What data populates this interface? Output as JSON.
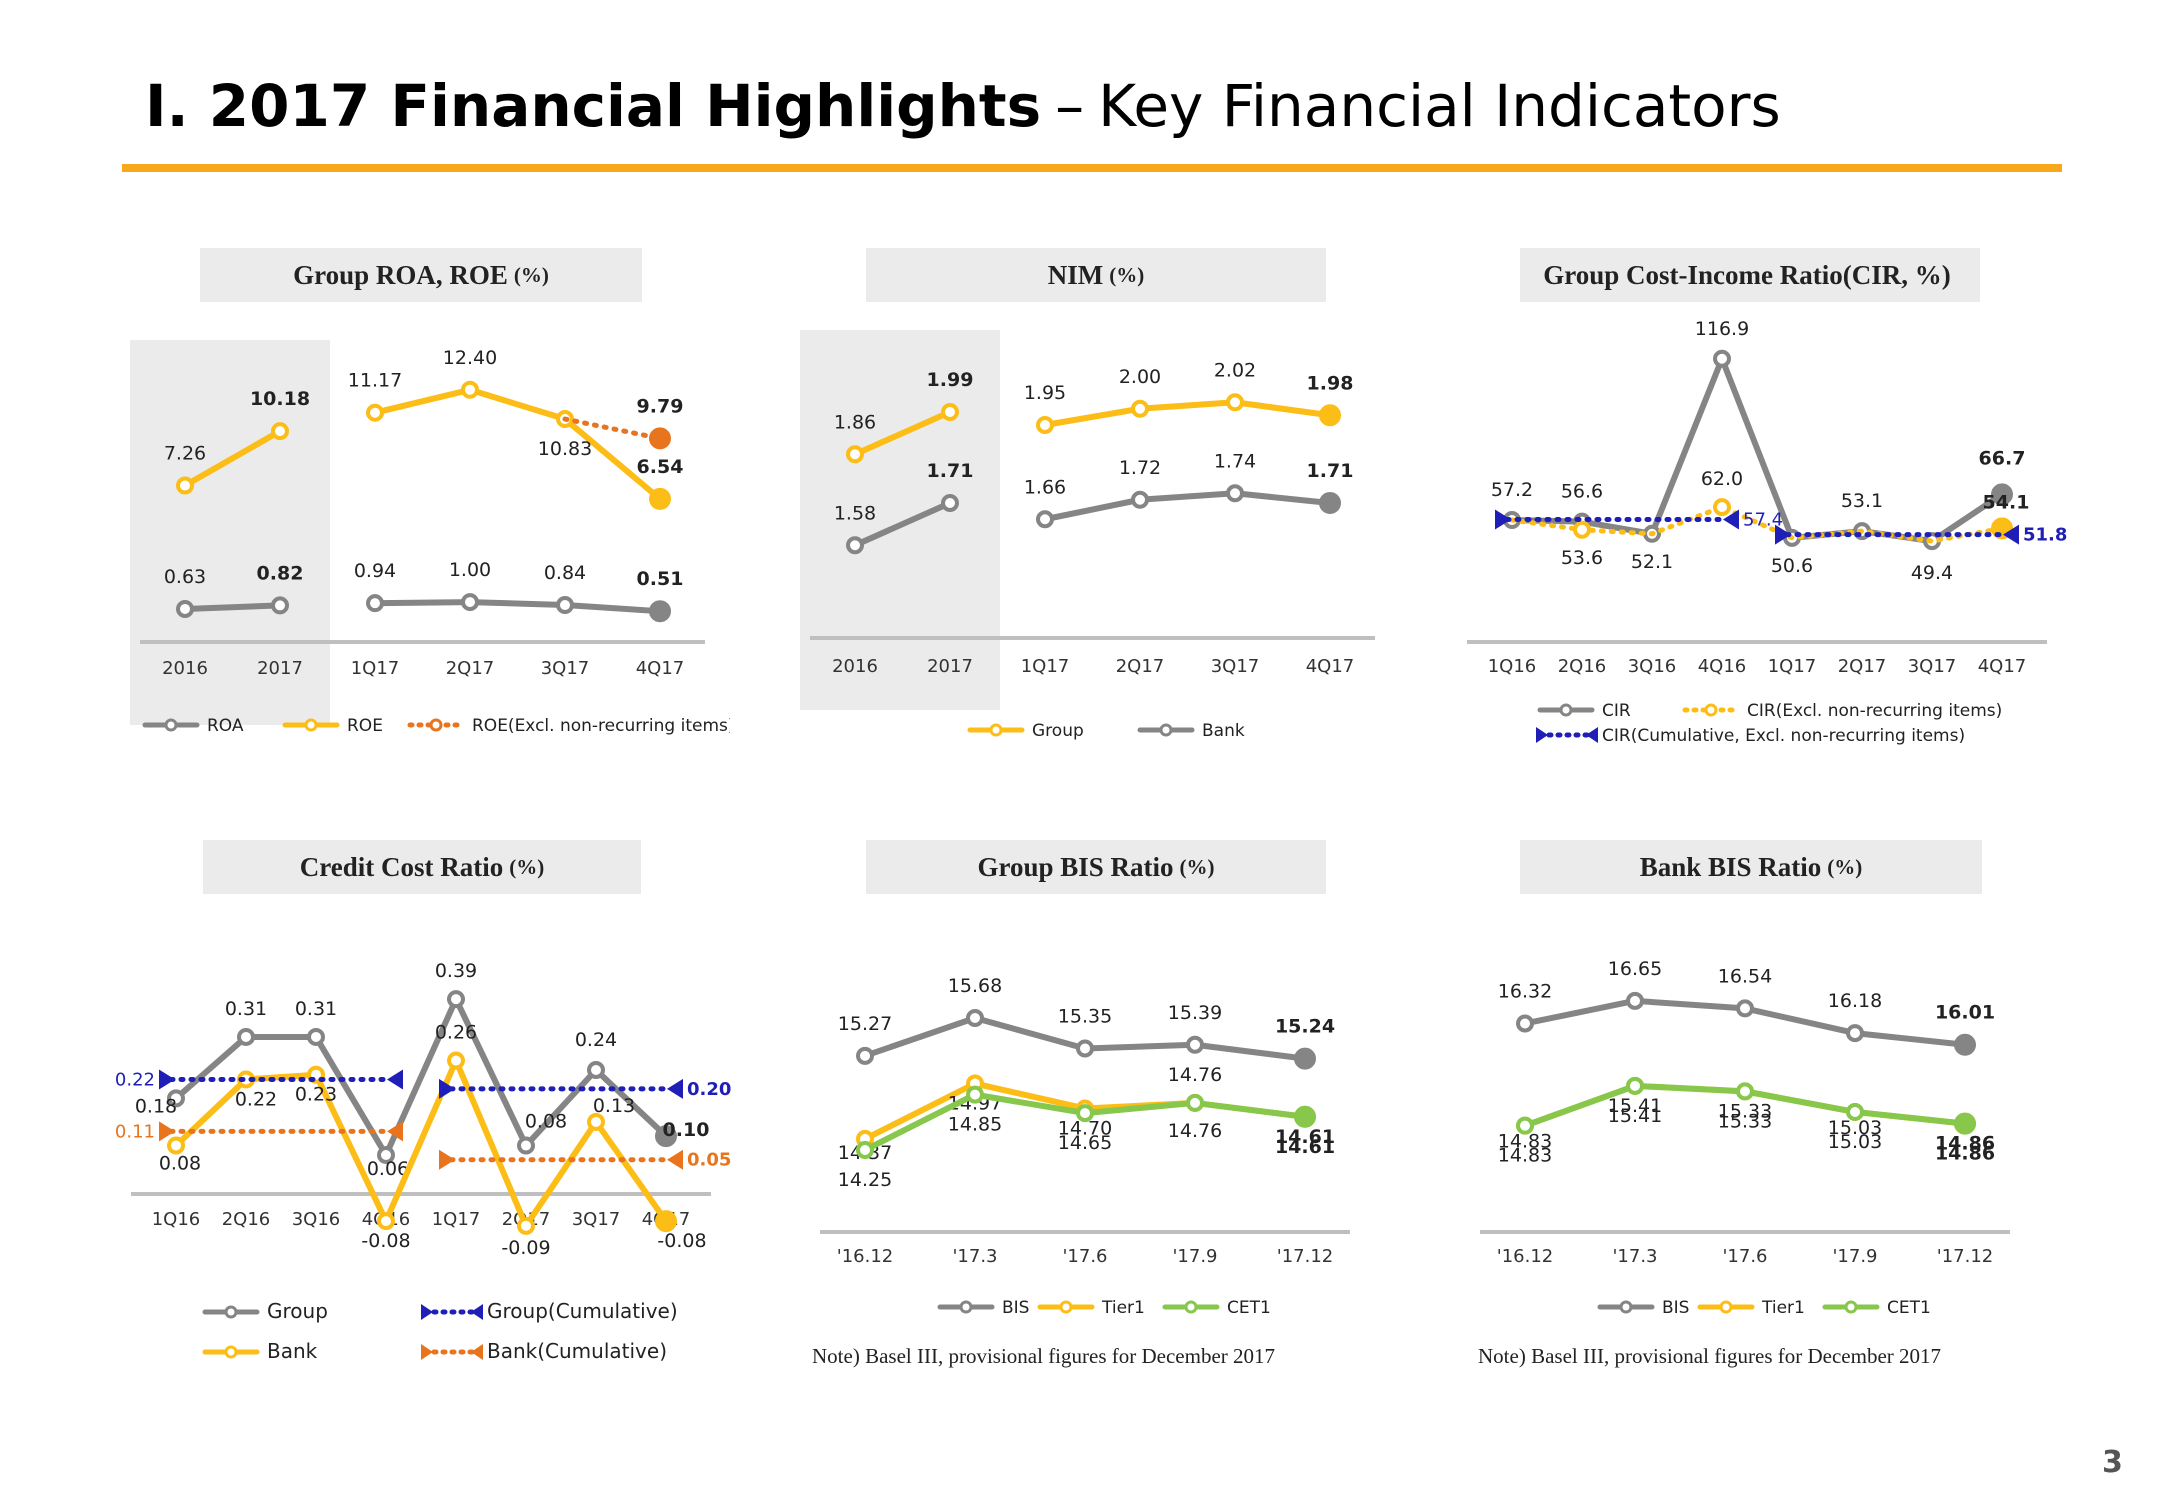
{
  "page": {
    "title_bold": "I. 2017 Financial Highlights",
    "title_sep": "–",
    "title_rest": "Key Financial Indicators",
    "page_number": "3"
  },
  "colors": {
    "gray": "#858585",
    "yellow": "#fcbd17",
    "orange": "#e8751d",
    "blue": "#1f1fb8",
    "green": "#86c74c",
    "accent": "#f7a81b",
    "shade": "#ebebeb"
  },
  "panels": {
    "roa": {
      "title": "Group ROA, ROE",
      "unit": "(%)"
    },
    "nim": {
      "title": "NIM",
      "unit": "(%)"
    },
    "cir": {
      "title": "Group Cost-Income Ratio(CIR, %)",
      "unit": ""
    },
    "ccr": {
      "title": "Credit Cost Ratio",
      "unit": "(%)"
    },
    "gbis": {
      "title": "Group BIS Ratio",
      "unit": "(%)",
      "note": "Note) Basel III, provisional figures for December 2017"
    },
    "bbis": {
      "title": "Bank BIS Ratio",
      "unit": "(%)",
      "note": "Note) Basel III, provisional figures for December 2017"
    }
  },
  "chart_data": [
    {
      "id": "roa",
      "type": "line",
      "categories": [
        "2016",
        "2017",
        "1Q17",
        "2Q17",
        "3Q17",
        "4Q17"
      ],
      "ylim": [
        -0.5,
        14
      ],
      "series": [
        {
          "name": "ROA",
          "color": "gray",
          "style": "solid",
          "segments": [
            [
              0,
              1
            ],
            [
              2,
              5
            ]
          ],
          "values": [
            0.63,
            0.82,
            0.94,
            1.0,
            0.84,
            0.51
          ],
          "labels": [
            "0.63",
            "0.82",
            "0.94",
            "1.00",
            "0.84",
            "0.51"
          ]
        },
        {
          "name": "ROE",
          "color": "yellow",
          "style": "solid",
          "segments": [
            [
              0,
              1
            ],
            [
              2,
              5
            ]
          ],
          "values": [
            7.26,
            10.18,
            11.17,
            12.4,
            10.83,
            6.54
          ],
          "labels": [
            "7.26",
            "10.18",
            "11.17",
            "12.40",
            "10.83",
            "6.54"
          ]
        },
        {
          "name": "ROE(Excl. non-recurring items)",
          "color": "orange",
          "style": "dotted",
          "points": [
            [
              4,
              10.83
            ],
            [
              5,
              9.79
            ]
          ],
          "labels": [
            "9.79"
          ]
        }
      ]
    },
    {
      "id": "nim",
      "type": "line",
      "categories": [
        "2016",
        "2017",
        "1Q17",
        "2Q17",
        "3Q17",
        "4Q17"
      ],
      "ylim": [
        1.35,
        2.15
      ],
      "series": [
        {
          "name": "Group",
          "color": "yellow",
          "style": "solid",
          "segments": [
            [
              0,
              1
            ],
            [
              2,
              5
            ]
          ],
          "values": [
            1.86,
            1.99,
            1.95,
            2.0,
            2.02,
            1.98
          ],
          "labels": [
            "1.86",
            "1.99",
            "1.95",
            "2.00",
            "2.02",
            "1.98"
          ]
        },
        {
          "name": "Bank",
          "color": "gray",
          "style": "solid",
          "segments": [
            [
              0,
              1
            ],
            [
              2,
              5
            ]
          ],
          "values": [
            1.58,
            1.71,
            1.66,
            1.72,
            1.74,
            1.71
          ],
          "labels": [
            "1.58",
            "1.71",
            "1.66",
            "1.72",
            "1.74",
            "1.71"
          ]
        }
      ]
    },
    {
      "id": "cir",
      "type": "line",
      "categories": [
        "1Q16",
        "2Q16",
        "3Q16",
        "4Q16",
        "1Q17",
        "2Q17",
        "3Q17",
        "4Q17"
      ],
      "ylim": [
        35,
        122
      ],
      "series": [
        {
          "name": "CIR",
          "color": "gray",
          "style": "solid",
          "segments": [
            [
              0,
              7
            ]
          ],
          "values": [
            57.2,
            56.6,
            52.1,
            116.9,
            50.6,
            53.1,
            49.4,
            66.7
          ],
          "labels": [
            "57.2",
            "56.6",
            "52.1",
            "116.9",
            "50.6",
            "53.1",
            "49.4",
            "66.7"
          ]
        },
        {
          "name": "CIR(Excl. non-recurring items)",
          "color": "yellow",
          "style": "dotted",
          "values": [
            57.2,
            53.6,
            52.1,
            62.0,
            50.6,
            53.1,
            49.4,
            54.1
          ],
          "labels": [
            "53.6",
            "62.0",
            "54.1"
          ]
        },
        {
          "name": "CIR(Cumulative, Excl. non-recurring items)",
          "color": "blue",
          "style": "dotted",
          "lines": [
            {
              "from": 0,
              "to": 3,
              "value": 57.4,
              "label": "57.4"
            },
            {
              "from": 4,
              "to": 7,
              "value": 51.8,
              "label": "51.8"
            }
          ]
        }
      ]
    },
    {
      "id": "ccr",
      "type": "line",
      "categories": [
        "1Q16",
        "2Q16",
        "3Q16",
        "4Q16",
        "1Q17",
        "2Q17",
        "3Q17",
        "4Q17"
      ],
      "ylim": [
        -0.12,
        0.42
      ],
      "series": [
        {
          "name": "Group",
          "color": "gray",
          "style": "solid",
          "segments": [
            [
              0,
              7
            ]
          ],
          "values": [
            0.18,
            0.31,
            0.31,
            0.06,
            0.39,
            0.08,
            0.24,
            0.1
          ],
          "labels": [
            "0.18",
            "0.31",
            "0.31",
            "0.06",
            "0.39",
            "0.08",
            "0.24",
            "0.10"
          ]
        },
        {
          "name": "Bank",
          "color": "yellow",
          "style": "solid",
          "segments": [
            [
              0,
              7
            ]
          ],
          "values": [
            0.08,
            0.22,
            0.23,
            -0.08,
            0.26,
            -0.09,
            0.13,
            -0.08
          ],
          "labels": [
            "0.08",
            "0.22",
            "0.23",
            "-0.08",
            "0.26",
            "-0.09",
            "0.13",
            "-0.08"
          ]
        },
        {
          "name": "Group(Cumulative)",
          "color": "blue",
          "style": "dotted",
          "lines": [
            {
              "from": 0,
              "to": 3,
              "value": 0.22,
              "label": "0.22"
            },
            {
              "from": 4,
              "to": 7,
              "value": 0.2,
              "label": "0.20"
            }
          ]
        },
        {
          "name": "Bank(Cumulative)",
          "color": "orange",
          "style": "dotted",
          "lines": [
            {
              "from": 0,
              "to": 3,
              "value": 0.11,
              "label": "0.11"
            },
            {
              "from": 4,
              "to": 7,
              "value": 0.05,
              "label": "0.05"
            }
          ]
        }
      ]
    },
    {
      "id": "gbis",
      "type": "line",
      "categories": [
        "'16.12",
        "'17.3",
        "'17.6",
        "'17.9",
        "'17.12"
      ],
      "ylim": [
        13.6,
        16.2
      ],
      "series": [
        {
          "name": "BIS",
          "color": "gray",
          "style": "solid",
          "segments": [
            [
              0,
              4
            ]
          ],
          "values": [
            15.27,
            15.68,
            15.35,
            15.39,
            15.24
          ],
          "labels": [
            "15.27",
            "15.68",
            "15.35",
            "15.39",
            "15.24"
          ]
        },
        {
          "name": "Tier1",
          "color": "yellow",
          "style": "solid",
          "segments": [
            [
              0,
              4
            ]
          ],
          "values": [
            14.37,
            14.97,
            14.7,
            14.76,
            14.61
          ],
          "labels": [
            "14.37",
            "14.97",
            "14.70",
            "14.76",
            "14.61"
          ]
        },
        {
          "name": "CET1",
          "color": "green",
          "style": "solid",
          "segments": [
            [
              0,
              4
            ]
          ],
          "values": [
            14.25,
            14.85,
            14.65,
            14.76,
            14.61
          ],
          "labels": [
            "14.25",
            "14.85",
            "14.65",
            "14.76",
            "14.61"
          ]
        }
      ]
    },
    {
      "id": "bbis",
      "type": "line",
      "categories": [
        "'16.12",
        "'17.3",
        "'17.6",
        "'17.9",
        "'17.12"
      ],
      "ylim": [
        13.6,
        17.1
      ],
      "series": [
        {
          "name": "BIS",
          "color": "gray",
          "style": "solid",
          "segments": [
            [
              0,
              4
            ]
          ],
          "values": [
            16.32,
            16.65,
            16.54,
            16.18,
            16.01
          ],
          "labels": [
            "16.32",
            "16.65",
            "16.54",
            "16.18",
            "16.01"
          ]
        },
        {
          "name": "Tier1",
          "color": "yellow",
          "style": "solid",
          "segments": [
            [
              0,
              4
            ]
          ],
          "values": [
            14.83,
            15.41,
            15.33,
            15.03,
            14.86
          ],
          "labels": [
            "14.83",
            "15.41",
            "15.33",
            "15.03",
            "14.86"
          ]
        },
        {
          "name": "CET1",
          "color": "green",
          "style": "solid",
          "segments": [
            [
              0,
              4
            ]
          ],
          "values": [
            14.83,
            15.41,
            15.33,
            15.03,
            14.86
          ],
          "labels": [
            "14.83",
            "15.41",
            "15.33",
            "15.03",
            "14.86"
          ]
        }
      ]
    }
  ]
}
